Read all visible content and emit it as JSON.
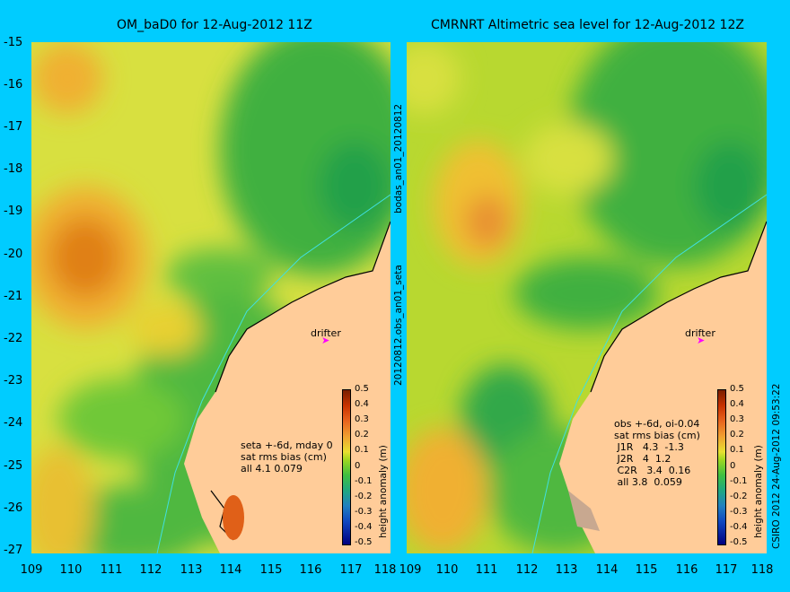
{
  "left_panel": {
    "title": "OM_baD0 for 12-Aug-2012 11Z",
    "annotation": "seta +-6d, mday 0\nsat rms bias (cm)\nall 4.1 0.079",
    "drifter_label": "drifter"
  },
  "right_panel": {
    "title": "CMRNRT Altimetric sea level  for 12-Aug-2012 12Z",
    "annotation": "obs +-6d, oi-0.04\nsat rms bias (cm)\n J1R   4.3  -1.3\n J2R   4  1.2\n C2R   3.4  0.16\n all 3.8  0.059",
    "drifter_label": "drifter"
  },
  "middle_labels": {
    "top": "bodas_an01_20120812",
    "bottom": "20120812.obs_an01_seta"
  },
  "y_axis": [
    "-15",
    "-16",
    "-17",
    "-18",
    "-19",
    "-20",
    "-21",
    "-22",
    "-23",
    "-24",
    "-25",
    "-26",
    "-27"
  ],
  "x_axis": [
    "109",
    "110",
    "111",
    "112",
    "113",
    "114",
    "115",
    "116",
    "117",
    "118"
  ],
  "colorbar": {
    "ticks": [
      "0.5",
      "0.4",
      "0.3",
      "0.2",
      "0.1",
      "0",
      "-0.1",
      "-0.2",
      "-0.3",
      "-0.4",
      "-0.5"
    ],
    "label": "height anomaly (m)"
  },
  "credit": "CSIRO 2012   24-Aug-2012 09:53:22",
  "colors": {
    "background": "#00ccff",
    "land": "#ffcc99",
    "arrow": "#ff00ff"
  }
}
